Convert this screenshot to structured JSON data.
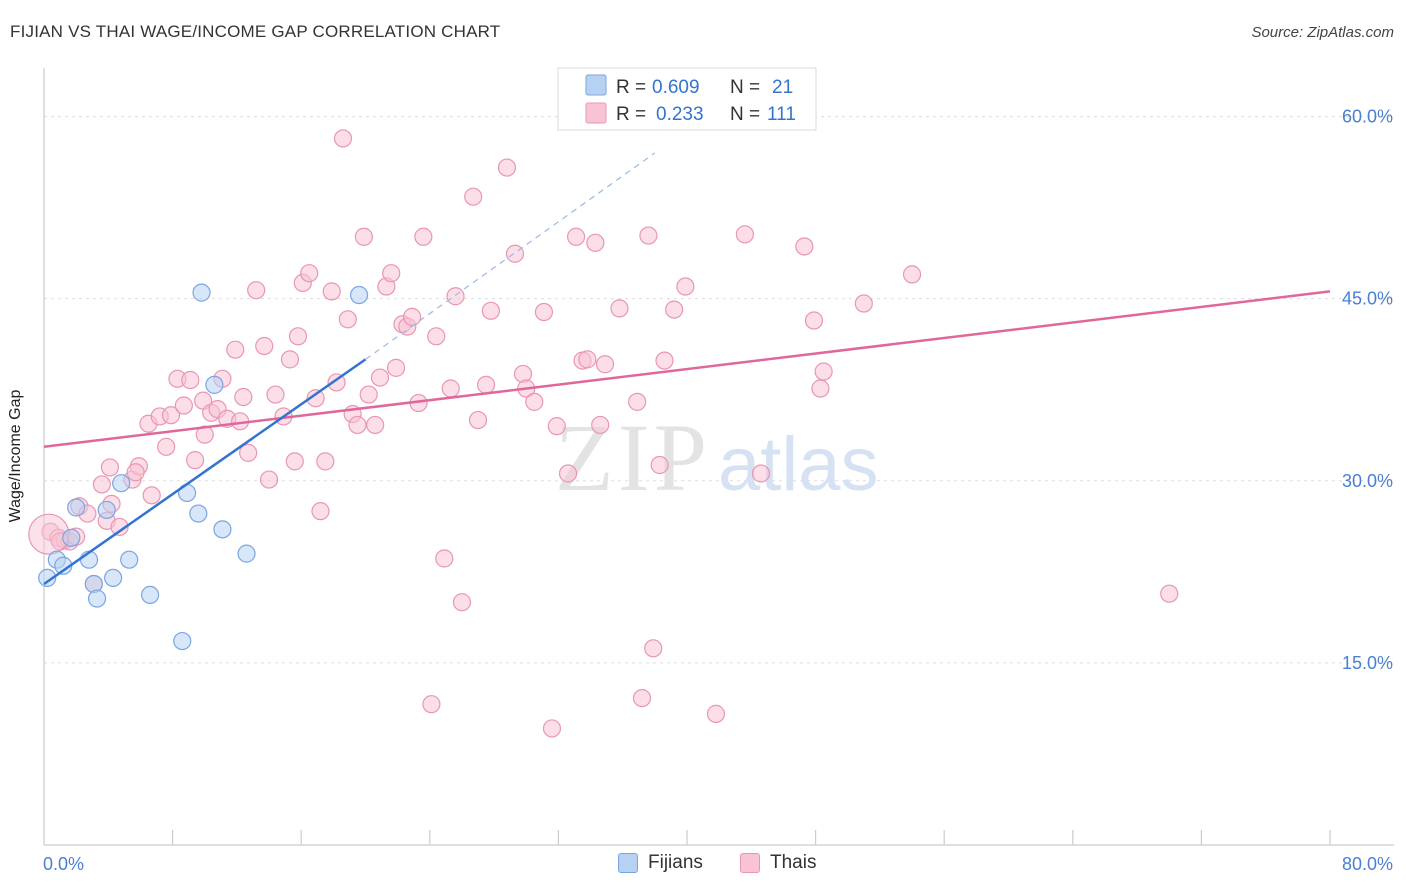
{
  "title": "FIJIAN VS THAI WAGE/INCOME GAP CORRELATION CHART",
  "source": "Source: ZipAtlas.com",
  "watermark": {
    "zip": "ZIP",
    "atlas": "atlas"
  },
  "legend": {
    "rows": [
      {
        "r_label": "R =",
        "r_value": "0.609",
        "n_label": "N =",
        "n_value": "21"
      },
      {
        "r_label": "R =",
        "r_value": "0.233",
        "n_label": "N =",
        "n_value": "111"
      }
    ]
  },
  "bottom_legend": [
    "Fijians",
    "Thais"
  ],
  "colors": {
    "fijians_fill": "#b7d1f3",
    "fijians_stroke": "#7aa6e0",
    "fijians_line": "#3374d1",
    "thais_fill": "#f8c3d4",
    "thais_stroke": "#e996b3",
    "thais_line": "#e0679a",
    "tick_text": "#4a7fd4",
    "grid": "#dddddd"
  },
  "chart_data": {
    "type": "scatter",
    "title": "FIJIAN VS THAI WAGE/INCOME GAP CORRELATION CHART",
    "xlabel": "",
    "ylabel": "Wage/Income Gap",
    "xlim": [
      0,
      80
    ],
    "ylim": [
      0,
      64
    ],
    "x_tick_labels": [
      "0.0%",
      "80.0%"
    ],
    "y_ticks": [
      15,
      30,
      45,
      60
    ],
    "y_tick_labels": [
      "15.0%",
      "30.0%",
      "45.0%",
      "60.0%"
    ],
    "grid": "horizontal dashed",
    "series": [
      {
        "name": "Fijians",
        "r": 0.609,
        "n": 21,
        "trend": {
          "x": [
            0,
            20
          ],
          "y": [
            21.5,
            40.0
          ],
          "dashed_extension_to": [
            38,
            57.0
          ]
        },
        "points": [
          [
            0.2,
            22.0
          ],
          [
            0.8,
            23.5
          ],
          [
            1.2,
            23.0
          ],
          [
            1.7,
            25.3
          ],
          [
            2.0,
            27.8
          ],
          [
            2.8,
            23.5
          ],
          [
            3.1,
            21.5
          ],
          [
            3.3,
            20.3
          ],
          [
            3.9,
            27.6
          ],
          [
            4.3,
            22.0
          ],
          [
            4.8,
            29.8
          ],
          [
            5.3,
            23.5
          ],
          [
            6.6,
            20.6
          ],
          [
            8.6,
            16.8
          ],
          [
            8.9,
            29.0
          ],
          [
            9.6,
            27.3
          ],
          [
            9.8,
            45.5
          ],
          [
            10.6,
            37.9
          ],
          [
            11.1,
            26.0
          ],
          [
            12.6,
            24.0
          ],
          [
            19.6,
            45.3
          ]
        ]
      },
      {
        "name": "Thais",
        "r": 0.233,
        "n": 111,
        "trend": {
          "x": [
            0,
            80
          ],
          "y": [
            32.8,
            45.6
          ]
        },
        "points": [
          [
            0.4,
            25.8
          ],
          [
            0.9,
            25.3
          ],
          [
            1.3,
            25.1
          ],
          [
            1.6,
            25.0
          ],
          [
            2.0,
            25.4
          ],
          [
            2.2,
            27.9
          ],
          [
            2.7,
            27.3
          ],
          [
            3.1,
            21.5
          ],
          [
            3.6,
            29.7
          ],
          [
            3.9,
            26.7
          ],
          [
            4.2,
            28.1
          ],
          [
            4.7,
            26.2
          ],
          [
            4.1,
            31.1
          ],
          [
            5.5,
            30.1
          ],
          [
            5.9,
            31.2
          ],
          [
            5.7,
            30.7
          ],
          [
            6.5,
            34.7
          ],
          [
            6.7,
            28.8
          ],
          [
            7.2,
            35.3
          ],
          [
            7.6,
            32.8
          ],
          [
            7.9,
            35.4
          ],
          [
            8.3,
            38.4
          ],
          [
            8.7,
            36.2
          ],
          [
            9.1,
            38.3
          ],
          [
            9.4,
            31.7
          ],
          [
            9.9,
            36.6
          ],
          [
            10.0,
            33.8
          ],
          [
            10.4,
            35.6
          ],
          [
            10.8,
            35.9
          ],
          [
            11.1,
            38.4
          ],
          [
            11.4,
            35.1
          ],
          [
            11.9,
            40.8
          ],
          [
            12.2,
            34.9
          ],
          [
            12.4,
            36.9
          ],
          [
            12.7,
            32.3
          ],
          [
            13.2,
            45.7
          ],
          [
            13.7,
            41.1
          ],
          [
            14.0,
            30.1
          ],
          [
            14.4,
            37.1
          ],
          [
            14.9,
            35.3
          ],
          [
            15.3,
            40.0
          ],
          [
            15.6,
            31.6
          ],
          [
            15.8,
            41.9
          ],
          [
            16.1,
            46.3
          ],
          [
            16.5,
            47.1
          ],
          [
            16.9,
            36.8
          ],
          [
            17.2,
            27.5
          ],
          [
            17.5,
            31.6
          ],
          [
            17.9,
            45.6
          ],
          [
            18.2,
            38.1
          ],
          [
            18.6,
            58.2
          ],
          [
            18.9,
            43.3
          ],
          [
            19.2,
            35.5
          ],
          [
            19.5,
            34.6
          ],
          [
            19.9,
            50.1
          ],
          [
            20.2,
            37.1
          ],
          [
            20.6,
            34.6
          ],
          [
            20.9,
            38.5
          ],
          [
            21.3,
            46.0
          ],
          [
            21.6,
            47.1
          ],
          [
            21.9,
            39.3
          ],
          [
            22.3,
            42.9
          ],
          [
            22.6,
            42.7
          ],
          [
            22.9,
            43.5
          ],
          [
            23.3,
            36.4
          ],
          [
            23.6,
            50.1
          ],
          [
            24.1,
            11.6
          ],
          [
            24.4,
            41.9
          ],
          [
            24.9,
            23.6
          ],
          [
            25.3,
            37.6
          ],
          [
            25.6,
            45.2
          ],
          [
            26.0,
            20.0
          ],
          [
            26.7,
            53.4
          ],
          [
            27.0,
            35.0
          ],
          [
            27.5,
            37.9
          ],
          [
            27.8,
            44.0
          ],
          [
            28.8,
            55.8
          ],
          [
            29.3,
            48.7
          ],
          [
            29.8,
            38.8
          ],
          [
            30.0,
            37.6
          ],
          [
            30.5,
            36.5
          ],
          [
            31.1,
            43.9
          ],
          [
            31.6,
            9.6
          ],
          [
            31.9,
            34.5
          ],
          [
            32.6,
            30.6
          ],
          [
            33.1,
            50.1
          ],
          [
            33.5,
            39.9
          ],
          [
            33.8,
            40.0
          ],
          [
            34.3,
            49.6
          ],
          [
            34.6,
            34.6
          ],
          [
            34.9,
            39.6
          ],
          [
            35.8,
            44.2
          ],
          [
            36.9,
            36.5
          ],
          [
            37.2,
            12.1
          ],
          [
            37.6,
            50.2
          ],
          [
            37.9,
            16.2
          ],
          [
            38.3,
            31.3
          ],
          [
            38.6,
            39.9
          ],
          [
            39.2,
            44.1
          ],
          [
            39.9,
            46.0
          ],
          [
            41.8,
            10.8
          ],
          [
            43.6,
            50.3
          ],
          [
            44.6,
            30.6
          ],
          [
            47.3,
            49.3
          ],
          [
            47.9,
            43.2
          ],
          [
            48.3,
            37.6
          ],
          [
            48.5,
            39.0
          ],
          [
            51.0,
            44.6
          ],
          [
            54.0,
            47.0
          ],
          [
            70.0,
            20.7
          ],
          [
            1.0,
            25.0
          ]
        ]
      }
    ]
  }
}
